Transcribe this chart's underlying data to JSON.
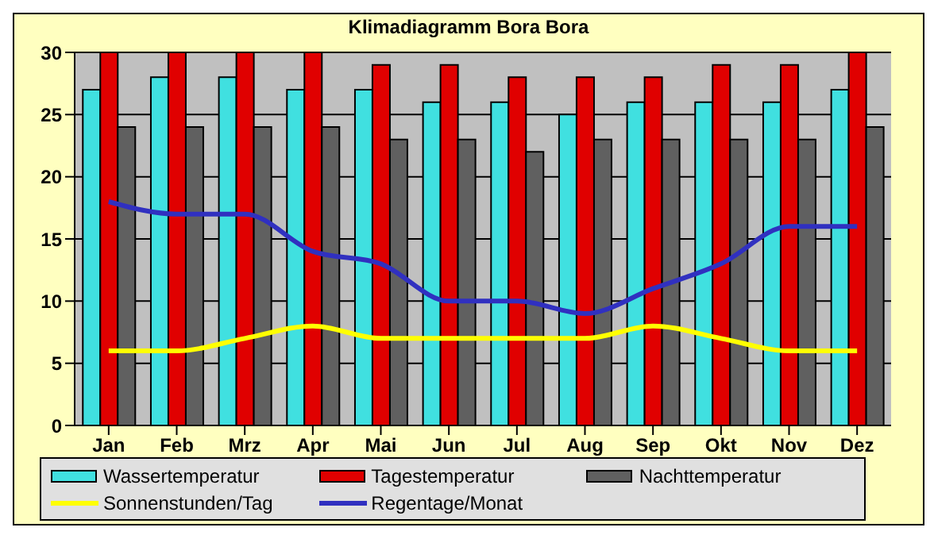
{
  "chart_data": {
    "type": "bar",
    "title": "Klimadiagramm Bora Bora",
    "categories": [
      "Jan",
      "Feb",
      "Mrz",
      "Apr",
      "Mai",
      "Jun",
      "Jul",
      "Aug",
      "Sep",
      "Okt",
      "Nov",
      "Dez"
    ],
    "series": [
      {
        "name": "Wassertemperatur",
        "color": "#40e0e0",
        "values": [
          27,
          28,
          28,
          27,
          27,
          26,
          26,
          25,
          26,
          26,
          26,
          27
        ]
      },
      {
        "name": "Tagestemperatur",
        "color": "#e00000",
        "values": [
          30,
          30,
          30,
          30,
          29,
          29,
          28,
          28,
          28,
          29,
          29,
          30
        ]
      },
      {
        "name": "Nachttemperatur",
        "color": "#606060",
        "values": [
          24,
          24,
          24,
          24,
          23,
          23,
          22,
          23,
          23,
          23,
          23,
          24
        ]
      },
      {
        "name": "Sonnenstunden/Tag",
        "type": "line",
        "color": "#ffff00",
        "values": [
          6,
          6,
          7,
          8,
          7,
          7,
          7,
          7,
          8,
          7,
          6,
          6
        ]
      },
      {
        "name": "Regentage/Monat",
        "type": "line",
        "color": "#3030c0",
        "values": [
          18,
          17,
          17,
          14,
          13,
          10,
          10,
          9,
          11,
          13,
          16,
          16
        ]
      }
    ],
    "ylim": [
      0,
      30
    ],
    "yticks": [
      0,
      5,
      10,
      15,
      20,
      25,
      30
    ],
    "grid": "y",
    "legend": "bottom",
    "marker": "none"
  }
}
